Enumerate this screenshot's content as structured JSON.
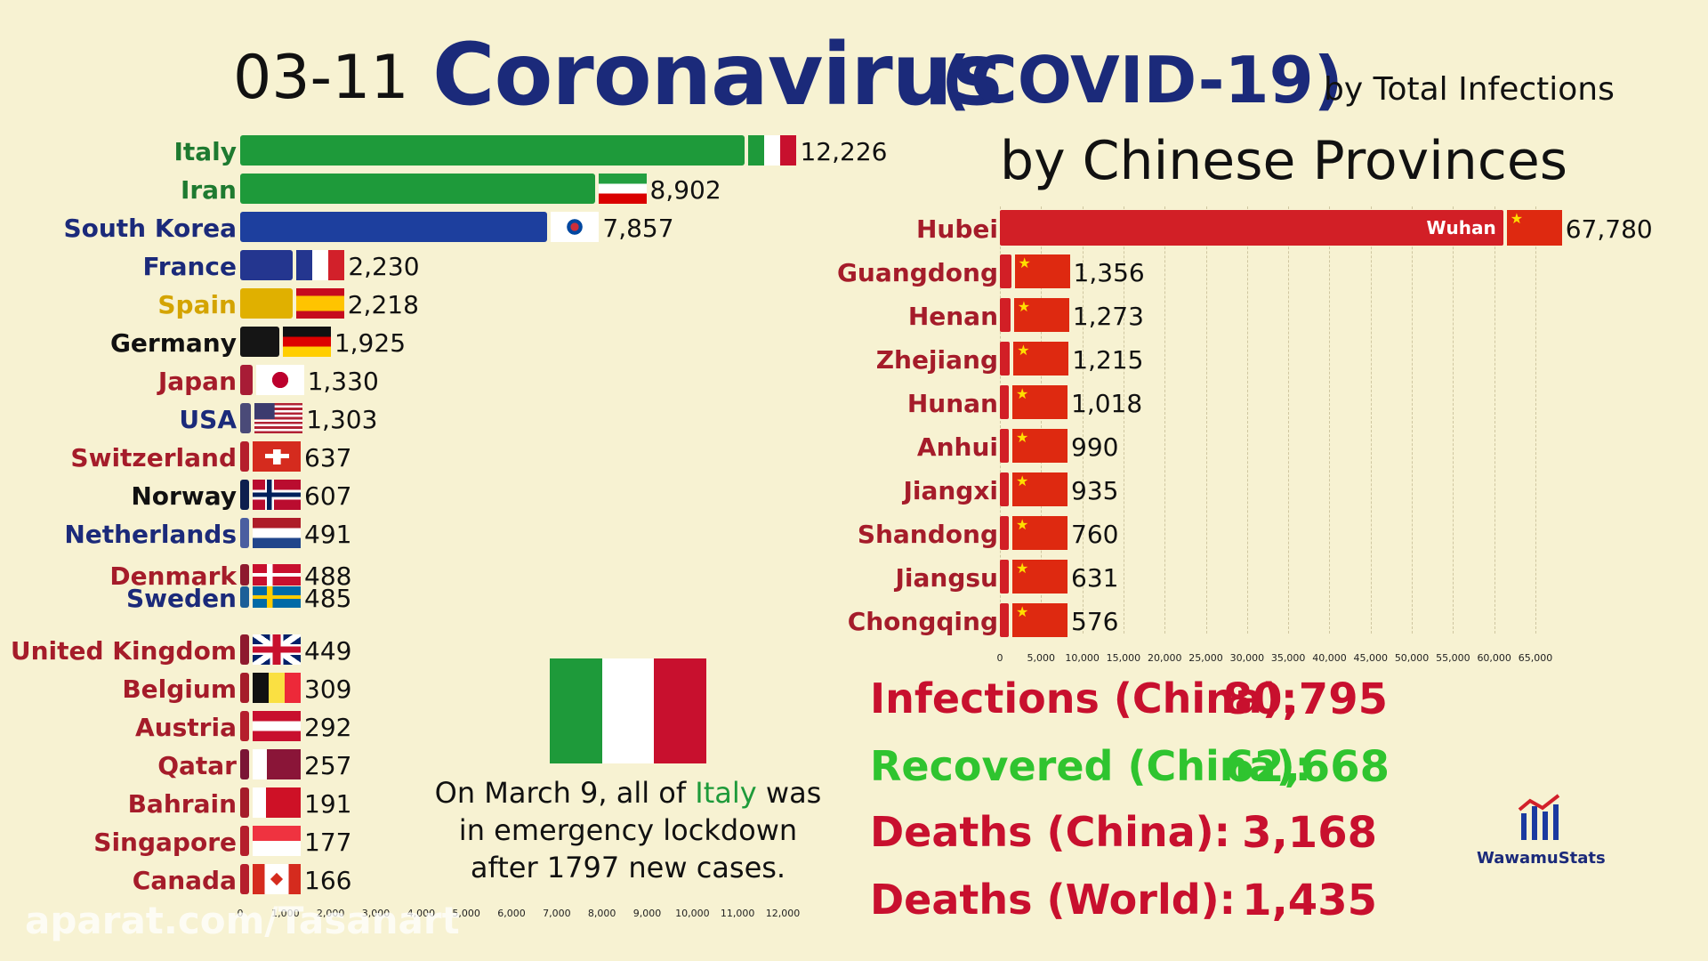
{
  "header": {
    "date": "03-11",
    "title": "Coronavirus",
    "title_sub": "(COVID-19)",
    "by_total": "by Total Infections",
    "by_provinces": "by Chinese Provinces"
  },
  "chart_data": [
    {
      "type": "bar",
      "orientation": "horizontal",
      "categories": [
        "Italy",
        "Iran",
        "South Korea",
        "France",
        "Spain",
        "Germany",
        "Japan",
        "USA",
        "Switzerland",
        "Norway",
        "Netherlands",
        "Denmark",
        "Sweden",
        "United Kingdom",
        "Belgium",
        "Austria",
        "Qatar",
        "Bahrain",
        "Singapore",
        "Canada"
      ],
      "values": [
        12226,
        8902,
        7857,
        2230,
        2218,
        1925,
        1330,
        1303,
        637,
        607,
        491,
        488,
        485,
        449,
        309,
        292,
        257,
        191,
        177,
        166
      ],
      "value_labels": [
        "12,226",
        "8,902",
        "7,857",
        "2,230",
        "2,218",
        "1,925",
        "1,330",
        "1,303",
        "637",
        "607",
        "491",
        "488",
        "485",
        "449",
        "309",
        "292",
        "257",
        "191",
        "177",
        "166"
      ],
      "xlim": [
        0,
        12000
      ],
      "xticks": [
        "0",
        "1,000",
        "2,000",
        "3,000",
        "4,000",
        "5,000",
        "6,000",
        "7,000",
        "8,000",
        "9,000",
        "10,000",
        "11,000",
        "12,000"
      ],
      "colors": [
        "#1e9a3a",
        "#1e9a3a",
        "#1d3f9e",
        "#24368f",
        "#e0b000",
        "#151515",
        "#a81c36",
        "#4a4a78",
        "#b51e2c",
        "#0e1f4e",
        "#4a5ea0",
        "#8e1a2e",
        "#1c5f98",
        "#8e1a2e",
        "#a51c2a",
        "#b51e2c",
        "#7a1535",
        "#a51c2a",
        "#b51e2c",
        "#b51e2c"
      ],
      "label_colors": [
        "#1e7a30",
        "#1e7a30",
        "#1b2a7a",
        "#1b2a7a",
        "#d4a400",
        "#111111",
        "#a51c2a",
        "#1b2a7a",
        "#a51c2a",
        "#111111",
        "#1b2a7a",
        "#a51c2a",
        "#1b2a7a",
        "#a51c2a",
        "#a51c2a",
        "#a51c2a",
        "#a51c2a",
        "#a51c2a",
        "#a51c2a",
        "#a51c2a"
      ],
      "flags": [
        "italy",
        "iran",
        "south-korea",
        "france",
        "spain",
        "germany",
        "japan",
        "usa",
        "switzerland",
        "norway",
        "netherlands",
        "denmark",
        "sweden",
        "united-kingdom",
        "belgium",
        "austria",
        "qatar",
        "bahrain",
        "singapore",
        "canada"
      ]
    },
    {
      "type": "bar",
      "orientation": "horizontal",
      "categories": [
        "Hubei",
        "Guangdong",
        "Henan",
        "Zhejiang",
        "Hunan",
        "Anhui",
        "Jiangxi",
        "Shandong",
        "Jiangsu",
        "Chongqing"
      ],
      "values": [
        67780,
        1356,
        1273,
        1215,
        1018,
        990,
        935,
        760,
        631,
        576
      ],
      "value_labels": [
        "67,780",
        "1,356",
        "1,273",
        "1,215",
        "1,018",
        "990",
        "935",
        "760",
        "631",
        "576"
      ],
      "inner_label": "Wuhan",
      "xlim": [
        0,
        65000
      ],
      "xticks": [
        "0",
        "5,000",
        "10,000",
        "15,000",
        "20,000",
        "25,000",
        "30,000",
        "35,000",
        "40,000",
        "45,000",
        "50,000",
        "55,000",
        "60,000",
        "65,000"
      ]
    }
  ],
  "stats": [
    {
      "label": "Infections (China):",
      "value": "80,795",
      "color": "#c8102e"
    },
    {
      "label": "Recovered (China):",
      "value": "62,668",
      "color": "#2fc42f"
    },
    {
      "label": "Deaths (China):",
      "value": "3,168",
      "color": "#c8102e"
    },
    {
      "label": "Deaths (World):",
      "value": "1,435",
      "color": "#c8102e"
    }
  ],
  "note": {
    "line1_pre": "On March 9, all of ",
    "line1_em": "Italy",
    "line1_post": " was",
    "line2": "in emergency lockdown",
    "line3": "after 1797 new cases."
  },
  "logo": {
    "name": "WawamuStats"
  },
  "watermark": "aparat.com/Tasanart"
}
